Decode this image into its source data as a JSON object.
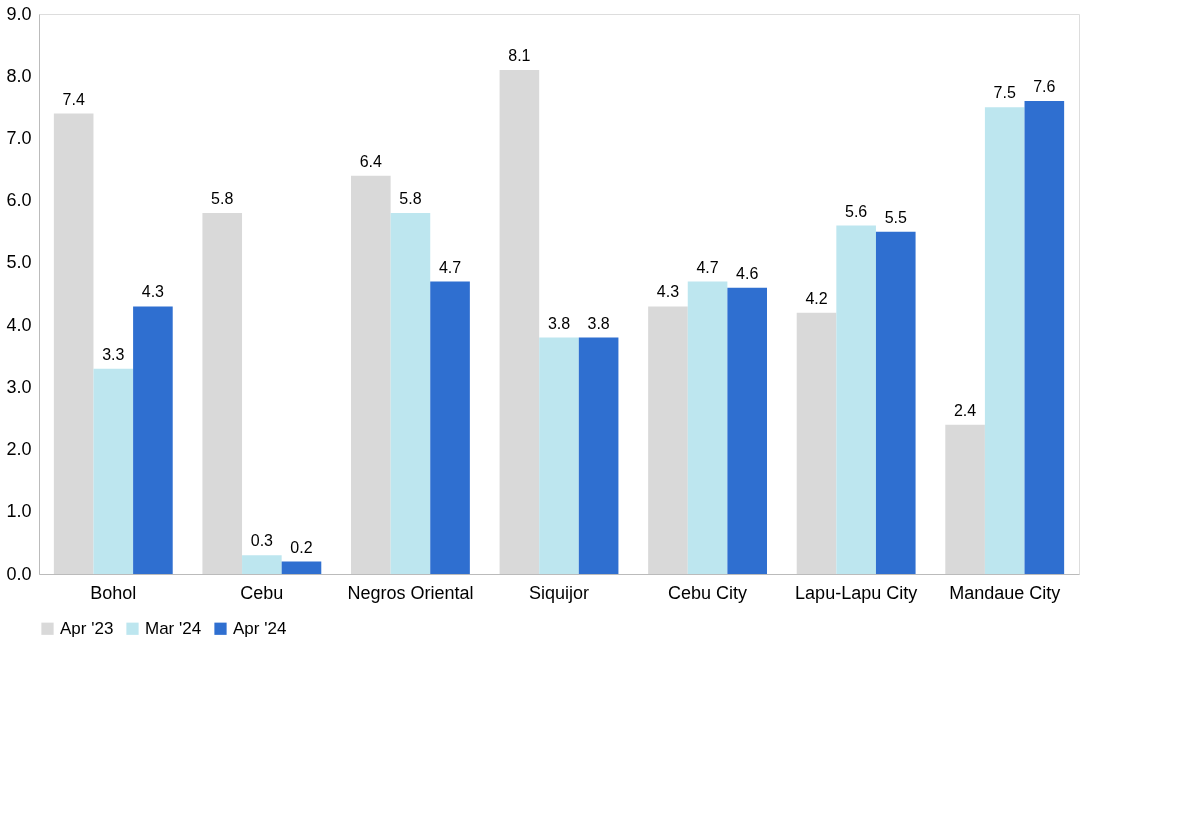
{
  "chart_data": {
    "type": "bar",
    "categories": [
      "Bohol",
      "Cebu",
      "Negros Oriental",
      "Siquijor",
      "Cebu City",
      "Lapu-Lapu City",
      "Mandaue City"
    ],
    "series": [
      {
        "name": "Apr '23",
        "color": "#d9d9d9",
        "values": [
          7.4,
          5.8,
          6.4,
          8.1,
          4.3,
          4.2,
          2.4
        ]
      },
      {
        "name": "Mar '24",
        "color": "#bde6ef",
        "values": [
          3.3,
          0.3,
          5.8,
          3.8,
          4.7,
          5.6,
          7.5
        ]
      },
      {
        "name": "Apr '24",
        "color": "#2f6fd0",
        "values": [
          4.3,
          0.2,
          4.7,
          3.8,
          4.6,
          5.5,
          7.6
        ]
      }
    ],
    "ylim": [
      0,
      9
    ],
    "yticks": [
      {
        "value": 0,
        "label": "0.0"
      },
      {
        "value": 1,
        "label": "1.0"
      },
      {
        "value": 2,
        "label": "2.0"
      },
      {
        "value": 3,
        "label": "3.0"
      },
      {
        "value": 4,
        "label": "4.0"
      },
      {
        "value": 5,
        "label": "5.0"
      },
      {
        "value": 6,
        "label": "6.0"
      },
      {
        "value": 7,
        "label": "7.0"
      },
      {
        "value": 8,
        "label": "8.0"
      },
      {
        "value": 9,
        "label": "9.0"
      }
    ],
    "data_labels": true,
    "grid": false,
    "legend": "bottom"
  }
}
